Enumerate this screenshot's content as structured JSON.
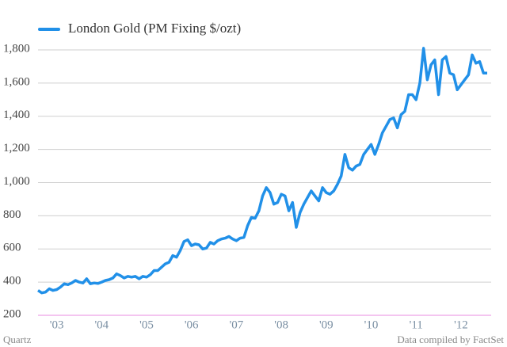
{
  "chart_data": {
    "type": "line",
    "categories": [
      null,
      null,
      null,
      null,
      null,
      "'03",
      null,
      null,
      null,
      null,
      null,
      null,
      null,
      null,
      null,
      null,
      null,
      "'04",
      null,
      null,
      null,
      null,
      null,
      null,
      null,
      null,
      null,
      null,
      null,
      "'05",
      null,
      null,
      null,
      null,
      null,
      null,
      null,
      null,
      null,
      null,
      null,
      "'06",
      null,
      null,
      null,
      null,
      null,
      null,
      null,
      null,
      null,
      null,
      null,
      "'07",
      null,
      null,
      null,
      null,
      null,
      null,
      null,
      null,
      null,
      null,
      null,
      "'08",
      null,
      null,
      null,
      null,
      null,
      null,
      null,
      null,
      null,
      null,
      null,
      "'09",
      null,
      null,
      null,
      null,
      null,
      null,
      null,
      null,
      null,
      null,
      null,
      "'10",
      null,
      null,
      null,
      null,
      null,
      null,
      null,
      null,
      null,
      null,
      null,
      "'11",
      null,
      null,
      null,
      null,
      null,
      null,
      null,
      null,
      null,
      null,
      null,
      "'12",
      null,
      null,
      null,
      null,
      null,
      null,
      null
    ],
    "series": [
      {
        "name": "London Gold (PM Fixing $/ozt)",
        "color": "#2190e8",
        "values": [
          350,
          335,
          340,
          360,
          350,
          355,
          370,
          390,
          385,
          395,
          410,
          400,
          395,
          420,
          390,
          395,
          392,
          400,
          410,
          415,
          425,
          450,
          440,
          425,
          435,
          430,
          435,
          420,
          435,
          430,
          445,
          470,
          470,
          490,
          510,
          520,
          560,
          550,
          590,
          645,
          655,
          620,
          630,
          625,
          600,
          605,
          640,
          630,
          650,
          660,
          665,
          675,
          660,
          650,
          665,
          670,
          740,
          790,
          785,
          830,
          920,
          970,
          940,
          870,
          880,
          930,
          920,
          830,
          880,
          730,
          820,
          870,
          910,
          950,
          920,
          890,
          970,
          940,
          930,
          950,
          990,
          1040,
          1170,
          1090,
          1075,
          1100,
          1110,
          1170,
          1200,
          1230,
          1170,
          1230,
          1300,
          1340,
          1380,
          1390,
          1330,
          1410,
          1430,
          1530,
          1530,
          1500,
          1600,
          1810,
          1620,
          1710,
          1740,
          1530,
          1740,
          1760,
          1660,
          1650,
          1560,
          1590,
          1620,
          1650,
          1770,
          1720,
          1730,
          1660,
          1660
        ]
      }
    ],
    "ylim": [
      200,
      1800
    ],
    "yticks": [
      200,
      400,
      600,
      800,
      {
        "value": 1000,
        "label": "1,000"
      },
      {
        "value": 1200,
        "label": "1,200"
      },
      {
        "value": 1400,
        "label": "1,400"
      },
      {
        "value": 1600,
        "label": "1,600"
      },
      {
        "value": 1800,
        "label": "1,800"
      }
    ],
    "grid": true,
    "source_left": "Quartz",
    "source_right": "Data compiled by FactSet"
  }
}
